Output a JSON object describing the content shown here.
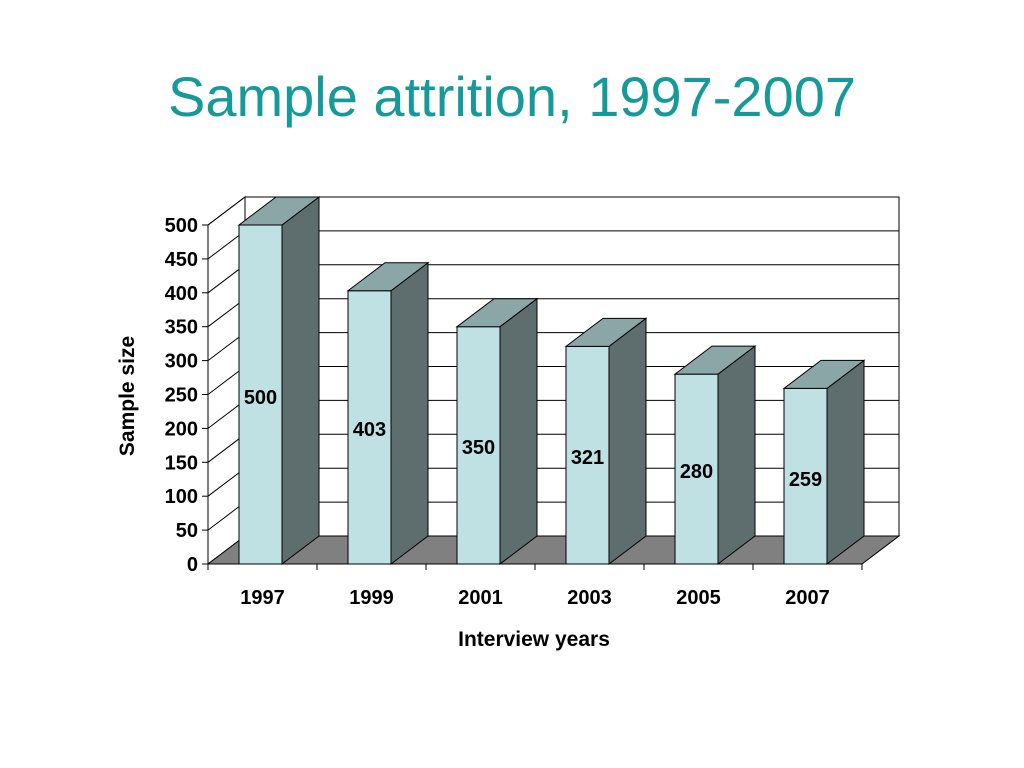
{
  "slide": {
    "title": "Sample attrition, 1997-2007"
  },
  "colors": {
    "title": "#169a99",
    "bar_front": "#bfe1e4",
    "bar_side": "#5e6e6f",
    "bar_top": "#8aa6a7",
    "floor": "#808080",
    "grid": "#000000"
  },
  "chart_data": {
    "type": "bar",
    "categories": [
      "1997",
      "1999",
      "2001",
      "2003",
      "2005",
      "2007"
    ],
    "series": [
      {
        "values": [
          500,
          403,
          350,
          321,
          280,
          259
        ]
      }
    ],
    "data_labels": [
      "500",
      "403",
      "350",
      "321",
      "280",
      "259"
    ],
    "ylim": [
      0,
      500
    ],
    "yticks": [
      "0",
      "50",
      "100",
      "150",
      "200",
      "250",
      "300",
      "350",
      "400",
      "450",
      "500"
    ],
    "xlabel": "Interview years",
    "ylabel": "Sample size",
    "grid": true,
    "legend": "none",
    "style": "3d"
  }
}
